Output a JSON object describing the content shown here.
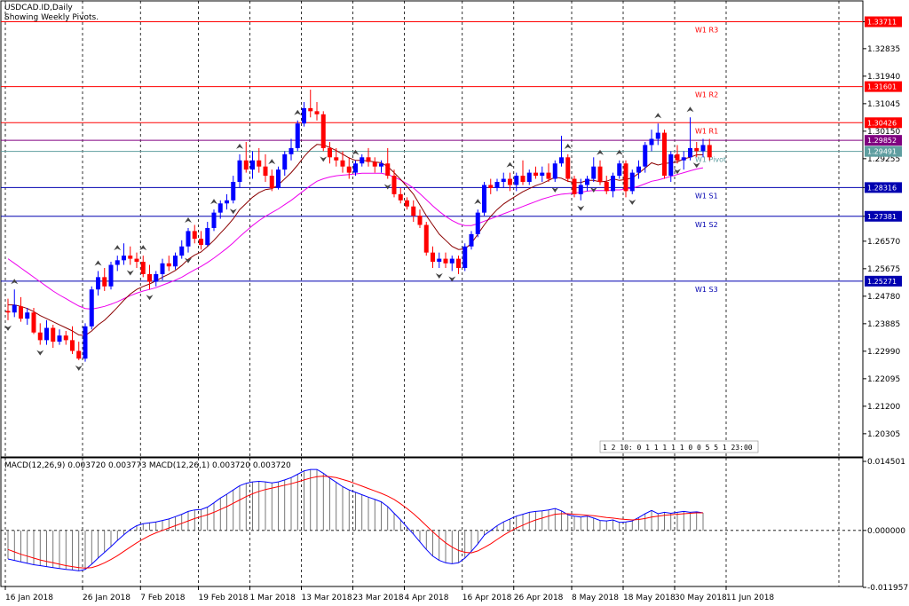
{
  "chart_header": {
    "symbol": "USDCAD.ID,Daily",
    "subtitle": "Showing Weekly Pivots."
  },
  "macd_header": "MACD(12,26,9) 0.003720 0.003773 MACD(12,26,1) 0.003720 0.003720",
  "hud_text": "1 2 10: 0 1 1 1 1 1 0 0 5 5 1 23:00",
  "colors": {
    "up": "#0000ff",
    "down": "#ff0000",
    "resistance": "#ff0000",
    "support": "#0000b0",
    "pivot": "#5f9ea0",
    "price_tag": "#800080",
    "fast_ma": "#8b0000",
    "slow_ma": "#ee00ee",
    "macd_line": "#0000ff",
    "signal_line": "#ff0000"
  },
  "chart_data": {
    "type": "candlestick",
    "ylim": [
      1.1955,
      1.3439
    ],
    "yticks": [
      "1.33711",
      "1.32835",
      "1.31940",
      "1.31045",
      "1.30150",
      "1.29255",
      "1.28316",
      "1.27381",
      "1.26570",
      "1.25675",
      "1.24780",
      "1.23885",
      "1.22990",
      "1.22095",
      "1.21200",
      "1.20305"
    ],
    "xticks": [
      {
        "label": "16 Jan 2018",
        "i": 0
      },
      {
        "label": "26 Jan 2018",
        "i": 12
      },
      {
        "label": "7 Feb 2018",
        "i": 21
      },
      {
        "label": "19 Feb 2018",
        "i": 30
      },
      {
        "label": "1 Mar 2018",
        "i": 38
      },
      {
        "label": "13 Mar 2018",
        "i": 46
      },
      {
        "label": "23 Mar 2018",
        "i": 54
      },
      {
        "label": "4 Apr 2018",
        "i": 62
      },
      {
        "label": "16 Apr 2018",
        "i": 71
      },
      {
        "label": "26 Apr 2018",
        "i": 79
      },
      {
        "label": "8 May 2018",
        "i": 88
      },
      {
        "label": "18 May 2018",
        "i": 96
      },
      {
        "label": "30 May 2018",
        "i": 104
      },
      {
        "label": "11 Jun 2018",
        "i": 112
      }
    ],
    "ohlc": [
      [
        1.243,
        1.247,
        1.24,
        1.2425
      ],
      [
        1.2425,
        1.25,
        1.241,
        1.245
      ],
      [
        1.2445,
        1.2475,
        1.2395,
        1.2405
      ],
      [
        1.2405,
        1.244,
        1.2385,
        1.2425
      ],
      [
        1.2425,
        1.244,
        1.2355,
        1.236
      ],
      [
        1.236,
        1.239,
        1.232,
        1.2335
      ],
      [
        1.2335,
        1.24,
        1.232,
        1.2375
      ],
      [
        1.2375,
        1.2385,
        1.231,
        1.233
      ],
      [
        1.233,
        1.237,
        1.232,
        1.235
      ],
      [
        1.235,
        1.2365,
        1.232,
        1.2335
      ],
      [
        1.2335,
        1.238,
        1.229,
        1.23
      ],
      [
        1.23,
        1.233,
        1.227,
        1.2275
      ],
      [
        1.2275,
        1.239,
        1.2265,
        1.238
      ],
      [
        1.238,
        1.251,
        1.237,
        1.25
      ],
      [
        1.25,
        1.256,
        1.248,
        1.254
      ],
      [
        1.254,
        1.257,
        1.2495,
        1.251
      ],
      [
        1.251,
        1.259,
        1.25,
        1.258
      ],
      [
        1.258,
        1.261,
        1.256,
        1.2595
      ],
      [
        1.2595,
        1.265,
        1.258,
        1.261
      ],
      [
        1.261,
        1.264,
        1.258,
        1.26
      ],
      [
        1.26,
        1.262,
        1.257,
        1.259
      ],
      [
        1.259,
        1.261,
        1.254,
        1.255
      ],
      [
        1.255,
        1.258,
        1.25,
        1.2525
      ],
      [
        1.2525,
        1.256,
        1.251,
        1.255
      ],
      [
        1.255,
        1.26,
        1.253,
        1.2585
      ],
      [
        1.2585,
        1.261,
        1.256,
        1.2575
      ],
      [
        1.2575,
        1.262,
        1.2565,
        1.261
      ],
      [
        1.261,
        1.266,
        1.26,
        1.264
      ],
      [
        1.264,
        1.27,
        1.262,
        1.269
      ],
      [
        1.269,
        1.271,
        1.265,
        1.2665
      ],
      [
        1.2665,
        1.269,
        1.263,
        1.2645
      ],
      [
        1.2645,
        1.272,
        1.264,
        1.27
      ],
      [
        1.27,
        1.276,
        1.269,
        1.275
      ],
      [
        1.275,
        1.279,
        1.273,
        1.278
      ],
      [
        1.278,
        1.281,
        1.276,
        1.279
      ],
      [
        1.279,
        1.287,
        1.278,
        1.285
      ],
      [
        1.285,
        1.294,
        1.283,
        1.292
      ],
      [
        1.292,
        1.298,
        1.288,
        1.289
      ],
      [
        1.289,
        1.295,
        1.286,
        1.292
      ],
      [
        1.292,
        1.296,
        1.288,
        1.29
      ],
      [
        1.29,
        1.294,
        1.285,
        1.287
      ],
      [
        1.287,
        1.289,
        1.282,
        1.283
      ],
      [
        1.283,
        1.29,
        1.2825,
        1.289
      ],
      [
        1.289,
        1.295,
        1.287,
        1.294
      ],
      [
        1.294,
        1.299,
        1.292,
        1.296
      ],
      [
        1.296,
        1.305,
        1.295,
        1.304
      ],
      [
        1.304,
        1.311,
        1.303,
        1.309
      ],
      [
        1.309,
        1.315,
        1.306,
        1.308
      ],
      [
        1.308,
        1.311,
        1.305,
        1.307
      ],
      [
        1.307,
        1.308,
        1.295,
        1.296
      ],
      [
        1.296,
        1.298,
        1.291,
        1.293
      ],
      [
        1.293,
        1.296,
        1.29,
        1.292
      ],
      [
        1.292,
        1.295,
        1.288,
        1.29
      ],
      [
        1.29,
        1.293,
        1.286,
        1.288
      ],
      [
        1.288,
        1.292,
        1.287,
        1.291
      ],
      [
        1.291,
        1.294,
        1.29,
        1.293
      ],
      [
        1.293,
        1.296,
        1.29,
        1.2915
      ],
      [
        1.2915,
        1.293,
        1.288,
        1.29
      ],
      [
        1.29,
        1.292,
        1.288,
        1.291
      ],
      [
        1.291,
        1.296,
        1.286,
        1.287
      ],
      [
        1.287,
        1.289,
        1.28,
        1.281
      ],
      [
        1.281,
        1.283,
        1.278,
        1.279
      ],
      [
        1.279,
        1.28,
        1.276,
        1.277
      ],
      [
        1.277,
        1.279,
        1.272,
        1.274
      ],
      [
        1.274,
        1.276,
        1.27,
        1.271
      ],
      [
        1.271,
        1.272,
        1.261,
        1.262
      ],
      [
        1.262,
        1.264,
        1.257,
        1.259
      ],
      [
        1.259,
        1.262,
        1.257,
        1.26
      ],
      [
        1.26,
        1.262,
        1.257,
        1.2585
      ],
      [
        1.2585,
        1.261,
        1.256,
        1.26
      ],
      [
        1.26,
        1.261,
        1.255,
        1.257
      ],
      [
        1.257,
        1.265,
        1.256,
        1.264
      ],
      [
        1.264,
        1.269,
        1.263,
        1.268
      ],
      [
        1.268,
        1.276,
        1.267,
        1.275
      ],
      [
        1.275,
        1.285,
        1.274,
        1.284
      ],
      [
        1.284,
        1.286,
        1.281,
        1.283
      ],
      [
        1.283,
        1.286,
        1.282,
        1.285
      ],
      [
        1.285,
        1.288,
        1.283,
        1.286
      ],
      [
        1.286,
        1.288,
        1.282,
        1.284
      ],
      [
        1.284,
        1.288,
        1.282,
        1.287
      ],
      [
        1.287,
        1.292,
        1.284,
        1.285
      ],
      [
        1.285,
        1.289,
        1.284,
        1.288
      ],
      [
        1.288,
        1.29,
        1.286,
        1.287
      ],
      [
        1.287,
        1.29,
        1.285,
        1.288
      ],
      [
        1.288,
        1.291,
        1.285,
        1.286
      ],
      [
        1.286,
        1.292,
        1.285,
        1.291
      ],
      [
        1.291,
        1.3,
        1.29,
        1.293
      ],
      [
        1.293,
        1.294,
        1.285,
        1.286
      ],
      [
        1.286,
        1.287,
        1.28,
        1.281
      ],
      [
        1.281,
        1.286,
        1.279,
        1.284
      ],
      [
        1.284,
        1.287,
        1.282,
        1.286
      ],
      [
        1.286,
        1.293,
        1.285,
        1.29
      ],
      [
        1.29,
        1.292,
        1.284,
        1.285
      ],
      [
        1.285,
        1.287,
        1.281,
        1.282
      ],
      [
        1.282,
        1.288,
        1.28,
        1.287
      ],
      [
        1.287,
        1.292,
        1.286,
        1.291
      ],
      [
        1.291,
        1.292,
        1.28,
        1.282
      ],
      [
        1.282,
        1.289,
        1.281,
        1.288
      ],
      [
        1.288,
        1.292,
        1.286,
        1.29
      ],
      [
        1.29,
        1.298,
        1.288,
        1.297
      ],
      [
        1.297,
        1.302,
        1.295,
        1.299
      ],
      [
        1.299,
        1.304,
        1.297,
        1.301
      ],
      [
        1.301,
        1.302,
        1.286,
        1.287
      ],
      [
        1.287,
        1.295,
        1.285,
        1.294
      ],
      [
        1.294,
        1.297,
        1.291,
        1.292
      ],
      [
        1.292,
        1.295,
        1.289,
        1.293
      ],
      [
        1.293,
        1.306,
        1.292,
        1.296
      ],
      [
        1.296,
        1.298,
        1.293,
        1.295
      ],
      [
        1.295,
        1.299,
        1.293,
        1.297
      ],
      [
        1.297,
        1.299,
        1.292,
        1.293
      ]
    ],
    "fast_ma": [
      1.245,
      1.245,
      1.2445,
      1.2438,
      1.2428,
      1.2415,
      1.2405,
      1.2395,
      1.2385,
      1.2375,
      1.2365,
      1.2352,
      1.235,
      1.2365,
      1.2385,
      1.24,
      1.242,
      1.2442,
      1.2465,
      1.2485,
      1.25,
      1.251,
      1.2518,
      1.2528,
      1.254,
      1.255,
      1.2562,
      1.2578,
      1.2598,
      1.2612,
      1.2622,
      1.264,
      1.266,
      1.2683,
      1.2705,
      1.273,
      1.276,
      1.278,
      1.28,
      1.2815,
      1.2825,
      1.2828,
      1.284,
      1.286,
      1.288,
      1.2905,
      1.2932,
      1.2955,
      1.2972,
      1.297,
      1.2962,
      1.2952,
      1.294,
      1.2928,
      1.292,
      1.292,
      1.2918,
      1.2915,
      1.2912,
      1.29,
      1.288,
      1.2858,
      1.2835,
      1.281,
      1.2775,
      1.274,
      1.271,
      1.268,
      1.266,
      1.264,
      1.263,
      1.2632,
      1.265,
      1.268,
      1.271,
      1.2738,
      1.276,
      1.2778,
      1.2792,
      1.2805,
      1.2818,
      1.2828,
      1.2838,
      1.2845,
      1.2855,
      1.2865,
      1.2862,
      1.2852,
      1.2848,
      1.2848,
      1.2855,
      1.2855,
      1.285,
      1.2852,
      1.286,
      1.2855,
      1.2858,
      1.2863,
      1.2878,
      1.2895,
      1.2912,
      1.2905,
      1.291,
      1.2912,
      1.2915,
      1.2925,
      1.293,
      1.2938,
      1.2938
    ],
    "slow_ma": [
      1.26,
      1.2585,
      1.257,
      1.2555,
      1.254,
      1.2525,
      1.251,
      1.2495,
      1.2482,
      1.247,
      1.2458,
      1.2446,
      1.2438,
      1.2436,
      1.244,
      1.2445,
      1.2452,
      1.246,
      1.247,
      1.248,
      1.2488,
      1.2495,
      1.25,
      1.2506,
      1.2514,
      1.2522,
      1.253,
      1.254,
      1.2552,
      1.2564,
      1.2575,
      1.2588,
      1.2602,
      1.2618,
      1.2634,
      1.2652,
      1.2672,
      1.269,
      1.2708,
      1.2724,
      1.2738,
      1.275,
      1.2762,
      1.2776,
      1.279,
      1.2806,
      1.2822,
      1.2838,
      1.2852,
      1.286,
      1.2866,
      1.287,
      1.2872,
      1.2874,
      1.2876,
      1.2878,
      1.2878,
      1.2878,
      1.2878,
      1.2874,
      1.2866,
      1.2856,
      1.2844,
      1.283,
      1.2812,
      1.2792,
      1.2772,
      1.2754,
      1.2738,
      1.2724,
      1.2714,
      1.2708,
      1.2708,
      1.2714,
      1.2722,
      1.273,
      1.2738,
      1.2746,
      1.2754,
      1.2762,
      1.277,
      1.2778,
      1.2786,
      1.2794,
      1.28,
      1.2806,
      1.281,
      1.2812,
      1.2814,
      1.2816,
      1.282,
      1.2822,
      1.2822,
      1.2822,
      1.2824,
      1.2824,
      1.2826,
      1.283,
      1.2836,
      1.2844,
      1.2852,
      1.2856,
      1.2862,
      1.2868,
      1.2874,
      1.288,
      1.2886,
      1.2892,
      1.2896
    ],
    "levels": [
      {
        "name": "W1 R3",
        "value": 1.33711,
        "tag": "1.33711",
        "kind": "resistance"
      },
      {
        "name": "W1 R2",
        "value": 1.31601,
        "tag": "1.31601",
        "kind": "resistance"
      },
      {
        "name": "W1 R1",
        "value": 1.30426,
        "tag": "1.30426",
        "kind": "resistance"
      },
      {
        "name": "W1 Pivot",
        "value": 1.29491,
        "tag": "1.29491",
        "kind": "pivot"
      },
      {
        "name": "W1 S1",
        "value": 1.28316,
        "tag": "1.28316",
        "kind": "support"
      },
      {
        "name": "W1 S2",
        "value": 1.27381,
        "tag": "1.27381",
        "kind": "support"
      },
      {
        "name": "W1 S3",
        "value": 1.25271,
        "tag": "1.25271",
        "kind": "support"
      }
    ],
    "current_price": {
      "value": 1.29852,
      "tag": "1.29852"
    },
    "fractals_up": [
      1,
      14,
      17,
      21,
      28,
      32,
      36,
      41,
      45,
      54,
      73,
      78,
      87,
      92,
      95,
      101,
      106
    ],
    "fractals_down": [
      0,
      5,
      11,
      19,
      22,
      28,
      35,
      49,
      59,
      67,
      69,
      85,
      89,
      91,
      97,
      104,
      107
    ],
    "macd": {
      "ylim": [
        -0.011957,
        0.014501
      ],
      "yticks": [
        "0.014501",
        "0.000000",
        "-0.011957"
      ],
      "hist": [
        -0.006,
        -0.0063,
        -0.0066,
        -0.0069,
        -0.0072,
        -0.0074,
        -0.0076,
        -0.0078,
        -0.008,
        -0.0082,
        -0.0083,
        -0.0085,
        -0.0082,
        -0.0071,
        -0.0058,
        -0.0046,
        -0.0034,
        -0.0021,
        -0.0009,
        0.0002,
        0.001,
        0.0014,
        0.0016,
        0.0018,
        0.0021,
        0.0024,
        0.0029,
        0.0034,
        0.004,
        0.0043,
        0.0044,
        0.0049,
        0.0058,
        0.0068,
        0.0076,
        0.0085,
        0.0094,
        0.0099,
        0.0102,
        0.0103,
        0.0102,
        0.01,
        0.0102,
        0.0106,
        0.0111,
        0.0118,
        0.0125,
        0.0128,
        0.0128,
        0.012,
        0.011,
        0.0101,
        0.0092,
        0.0085,
        0.008,
        0.0075,
        0.007,
        0.0065,
        0.006,
        0.005,
        0.0036,
        0.0022,
        0.0007,
        -0.0008,
        -0.0024,
        -0.004,
        -0.0054,
        -0.0063,
        -0.0068,
        -0.007,
        -0.0068,
        -0.0058,
        -0.0044,
        -0.0028,
        -0.001,
        0.0,
        0.001,
        0.0018,
        0.0024,
        0.003,
        0.0034,
        0.0038,
        0.004,
        0.0041,
        0.0043,
        0.0046,
        0.0041,
        0.0033,
        0.003,
        0.0028,
        0.003,
        0.0026,
        0.0021,
        0.002,
        0.0022,
        0.0017,
        0.0018,
        0.002,
        0.0027,
        0.0035,
        0.0042,
        0.0035,
        0.0038,
        0.0036,
        0.0038,
        0.004,
        0.0038,
        0.0039,
        0.0037
      ],
      "signal": [
        -0.004,
        -0.0045,
        -0.005,
        -0.0054,
        -0.0058,
        -0.0062,
        -0.0065,
        -0.0068,
        -0.0071,
        -0.0074,
        -0.0076,
        -0.0078,
        -0.0079,
        -0.0078,
        -0.0074,
        -0.0068,
        -0.0061,
        -0.0053,
        -0.0044,
        -0.0035,
        -0.0026,
        -0.0018,
        -0.0011,
        -0.0005,
        0.0,
        0.0005,
        0.001,
        0.0015,
        0.002,
        0.0025,
        0.0029,
        0.0033,
        0.0038,
        0.0044,
        0.005,
        0.0057,
        0.0064,
        0.0071,
        0.0077,
        0.0082,
        0.0086,
        0.0089,
        0.0092,
        0.0095,
        0.0098,
        0.0102,
        0.0106,
        0.011,
        0.0113,
        0.0114,
        0.0113,
        0.0111,
        0.0107,
        0.0103,
        0.0098,
        0.0093,
        0.0088,
        0.0083,
        0.0078,
        0.0072,
        0.0065,
        0.0056,
        0.0046,
        0.0035,
        0.0023,
        0.001,
        -0.0003,
        -0.0015,
        -0.0026,
        -0.0035,
        -0.0042,
        -0.0046,
        -0.0047,
        -0.0043,
        -0.0036,
        -0.0028,
        -0.0019,
        -0.001,
        -0.0002,
        0.0005,
        0.0011,
        0.0017,
        0.0022,
        0.0026,
        0.003,
        0.0034,
        0.0035,
        0.0035,
        0.0034,
        0.0033,
        0.0032,
        0.0031,
        0.0029,
        0.0027,
        0.0026,
        0.0024,
        0.0023,
        0.0022,
        0.0023,
        0.0025,
        0.0028,
        0.003,
        0.0032,
        0.0033,
        0.0034,
        0.0035,
        0.0036,
        0.0037,
        0.0037
      ]
    }
  }
}
